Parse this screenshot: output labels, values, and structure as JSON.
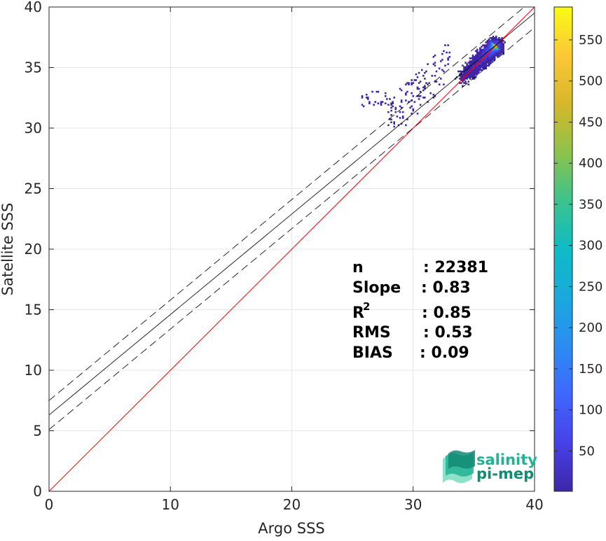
{
  "chart_data": {
    "type": "heatmap",
    "subtype": "density scatter with regression lines",
    "xlabel": "Argo SSS",
    "ylabel": "Satellite SSS",
    "xlim": [
      0,
      40
    ],
    "ylim": [
      0,
      40
    ],
    "x_ticks": [
      "0",
      "10",
      "20",
      "30",
      "40"
    ],
    "y_ticks": [
      "0",
      "5",
      "10",
      "15",
      "20",
      "25",
      "30",
      "35",
      "40"
    ],
    "grid": true,
    "colorbar": {
      "range": [
        1,
        590
      ],
      "ticks": [
        "50",
        "100",
        "150",
        "200",
        "250",
        "300",
        "350",
        "400",
        "450",
        "500",
        "550"
      ],
      "colormap": "parula"
    },
    "lines": [
      {
        "role": "1:1 line",
        "style": "solid",
        "color": "#ff0000",
        "x": [
          0,
          40
        ],
        "y": [
          0,
          40
        ]
      },
      {
        "role": "regression fit",
        "style": "solid",
        "color": "#000000",
        "x": [
          0,
          40
        ],
        "y": [
          6.3,
          39.5
        ]
      },
      {
        "role": "upper bound",
        "style": "dashed",
        "color": "#000000",
        "x": [
          0,
          40
        ],
        "y": [
          7.5,
          40.7
        ]
      },
      {
        "role": "lower bound",
        "style": "dashed",
        "color": "#000000",
        "x": [
          0,
          40
        ],
        "y": [
          5.1,
          38.3
        ]
      }
    ],
    "density": {
      "center": [
        36.8,
        36.8
      ],
      "peak_count": 590,
      "x_range": [
        25.5,
        37.8
      ],
      "y_range": [
        30.0,
        37.8
      ]
    },
    "stats": [
      {
        "label": "n",
        "value": ": 22381"
      },
      {
        "label": "Slope",
        "value": ": 0.83"
      },
      {
        "label": "R",
        "sup": "2",
        "value": ": 0.85"
      },
      {
        "label": "RMS",
        "value": ": 0.53"
      },
      {
        "label": "BIAS",
        "value": ": 0.09"
      }
    ]
  },
  "logo": {
    "line1": "salinity",
    "line2": "pi-mep",
    "colors": {
      "dark": "#138a74",
      "mid": "#21b394",
      "light": "#8fe0c9"
    }
  },
  "colors": {
    "one_to_one": "#ff0000",
    "fit": "#000000",
    "grid": "#e6e6e6"
  }
}
